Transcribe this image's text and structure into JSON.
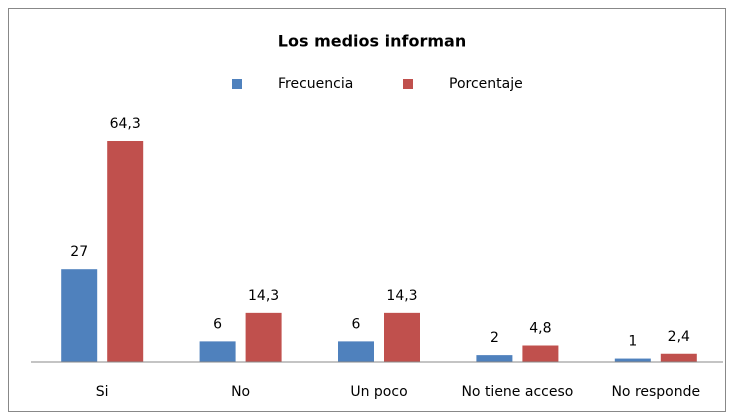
{
  "chart_data": {
    "type": "bar",
    "title": "Los medios informan",
    "categories": [
      "Si",
      "No",
      "Un poco",
      "No tiene acceso",
      "No responde"
    ],
    "series": [
      {
        "name": "Frecuencia",
        "color": "#4f81bd",
        "values": [
          27,
          6,
          6,
          2,
          1
        ]
      },
      {
        "name": "Porcentaje",
        "color": "#c0504d",
        "values": [
          64.3,
          14.3,
          14.3,
          4.8,
          2.4
        ],
        "value_labels": [
          "64,3",
          "14,3",
          "14,3",
          "4,8",
          "2,4"
        ]
      }
    ]
  }
}
